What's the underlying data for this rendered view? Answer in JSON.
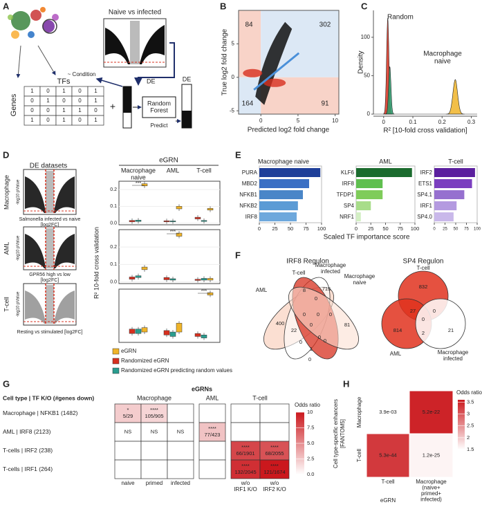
{
  "panel_labels": [
    "A",
    "B",
    "C",
    "D",
    "E",
    "F",
    "G",
    "H"
  ],
  "panel_a": {
    "volcano_title": "Naive vs infected",
    "condition": "~ Condition",
    "de_left": "DE",
    "tfs": "TFs",
    "genes": "Genes",
    "matrix": [
      [
        1,
        0,
        1,
        0,
        1
      ],
      [
        0,
        1,
        0,
        0,
        1
      ],
      [
        0,
        0,
        1,
        1,
        0
      ],
      [
        1,
        0,
        1,
        0,
        1
      ]
    ],
    "plus": "+",
    "random_forest": [
      "Random",
      "Forest"
    ],
    "predict": "Predict",
    "de_right": "DE"
  },
  "panel_b": {
    "xlabel": "Predicted log2 fold change",
    "ylabel": "True log2 fold change",
    "xlim": [
      -3,
      10.5
    ],
    "ylim": [
      -5.5,
      10
    ],
    "xticks": [
      0,
      5,
      10
    ],
    "yticks": [
      -5,
      0,
      5
    ],
    "quadrant_counts": {
      "top_left": 84,
      "top_right": 302,
      "bottom_left": 164,
      "bottom_right": 91
    },
    "colors": {
      "agree": "#dce8f5",
      "disagree": "#f8d3c8"
    }
  },
  "panel_c": {
    "ylabel": "Density",
    "xlabel": "R² [10-fold cross validation]",
    "xlim": [
      -0.035,
      0.32
    ],
    "ylim": [
      0,
      135
    ],
    "xticks": [
      0,
      0.1,
      0.2,
      0.3
    ],
    "yticks": [
      0,
      50,
      100
    ],
    "annotations": [
      "Random",
      [
        "Macrophage",
        "naive"
      ]
    ],
    "peaks": [
      {
        "color": "#d7301f",
        "center": 0.014,
        "height": 125,
        "sd": 0.004
      },
      {
        "color": "#2a9d6f",
        "center": 0.021,
        "height": 62,
        "sd": 0.004
      },
      {
        "color": "#f0b429",
        "center": 0.245,
        "height": 45,
        "sd": 0.008
      }
    ]
  },
  "panel_d": {
    "title": "DE datasets",
    "datasets": [
      {
        "name": "Macrophage",
        "xlabel": [
          "Salmonella infected vs naive",
          "[log2FC]"
        ],
        "ylabel": "-log10 pValue"
      },
      {
        "name": "AML",
        "xlabel": [
          "GPR56 high vs low",
          "[log2FC]"
        ],
        "ylabel": "-log10 pValue"
      },
      {
        "name": "T-cell",
        "xlabel": [
          "Resting vs stimulated [log2FC]"
        ],
        "ylabel": "-log10 pValue"
      }
    ],
    "header": "eGRN",
    "columns": [
      [
        "Macrophage",
        "naive"
      ],
      [
        "AML"
      ],
      [
        "T-cell"
      ]
    ],
    "ylabel": "R² 10-fold cross validation",
    "series": [
      {
        "name": "eGRN",
        "color": "#f0b429"
      },
      {
        "name": "Randomized eGRN",
        "color": "#d7301f"
      },
      {
        "name": "Randomized eGRN predicting random values",
        "color": "#2a9d8f"
      }
    ],
    "facets": [
      {
        "ylim": [
          -0.01,
          0.25
        ],
        "yticks": [
          {
            "value": 0,
            "label": "0.0"
          },
          0.1,
          0.2
        ],
        "significance": {
          "text": "***",
          "column": 0
        },
        "boxes": [
          [
            [
              0.222,
              0.235
            ],
            [
              0.085,
              0.1
            ],
            [
              0.078,
              0.088
            ]
          ],
          [
            [
              0.008,
              0.016
            ],
            [
              0.008,
              0.014
            ],
            [
              0.025,
              0.035
            ]
          ],
          [
            [
              0.01,
              0.018
            ],
            [
              0.008,
              0.013
            ],
            [
              0.01,
              0.016
            ]
          ]
        ]
      },
      {
        "ylim": [
          -0.01,
          0.3
        ],
        "yticks": [
          {
            "value": 0,
            "label": "0.0"
          },
          0.1,
          0.2
        ],
        "significance": {
          "text": "***",
          "column": 1
        },
        "boxes": [
          [
            [
              0.07,
              0.085
            ],
            [
              0.262,
              0.28
            ],
            [
              0.01,
              0.02
            ]
          ],
          [
            [
              0.015,
              0.028
            ],
            [
              0.012,
              0.025
            ],
            [
              0.008,
              0.015
            ]
          ],
          [
            [
              0.025,
              0.035
            ],
            [
              0.01,
              0.018
            ],
            [
              0.01,
              0.02
            ]
          ]
        ]
      },
      {
        "ylim": [
          -0.005,
          0.175
        ],
        "significance": {
          "text": "***",
          "column": 2
        },
        "boxes": [
          [
            [
              0.03,
              0.045
            ],
            [
              0.03,
              0.06
            ],
            [
              0.155,
              0.163
            ]
          ],
          [
            [
              0.025,
              0.04
            ],
            [
              0.02,
              0.035
            ],
            [
              0.015,
              0.025
            ]
          ],
          [
            [
              0.025,
              0.04
            ],
            [
              0.015,
              0.03
            ],
            [
              0.01,
              0.02
            ]
          ]
        ]
      }
    ]
  },
  "panel_e": {
    "xlabel": "Scaled TF importance score",
    "xlim": [
      0,
      100
    ],
    "xticks": [
      0,
      25,
      50,
      75,
      100
    ],
    "panels": [
      {
        "title": "Macrophage naive",
        "categories": [
          "PURA",
          "MBD2",
          "NFKB1",
          "NFKB2",
          "IRF8"
        ],
        "values": [
          98,
          80,
          70,
          62,
          60
        ],
        "colors": [
          "#1f3f99",
          "#3a6fc4",
          "#4a86c8",
          "#5b9bd5",
          "#6ea8dc"
        ]
      },
      {
        "title": "AML",
        "categories": [
          "KLF6",
          "IRF8",
          "TFDP1",
          "SP4",
          "NRF1"
        ],
        "values": [
          95,
          45,
          45,
          25,
          8
        ],
        "colors": [
          "#1b6b2e",
          "#5fbf4f",
          "#7fcc5a",
          "#a8dd8a",
          "#d3efc4"
        ]
      },
      {
        "title": "T-cell",
        "categories": [
          "IRF2",
          "ETS1",
          "SP4.1",
          "IRF1",
          "SP4.0"
        ],
        "values": [
          95,
          88,
          70,
          52,
          45
        ],
        "colors": [
          "#5b1f9e",
          "#7b3fbf",
          "#9670cf",
          "#b49ae0",
          "#c9b8ea"
        ]
      }
    ]
  },
  "panel_f": {
    "venns": [
      {
        "title": "IRF8 Regulon",
        "sets": [
          "AML",
          "T-cell",
          [
            "Macrophage",
            "infected"
          ],
          [
            "Macrophage",
            "naive"
          ]
        ],
        "counts": [
          400,
          8,
          715,
          81,
          22,
          0,
          0,
          0,
          0,
          0,
          0,
          0,
          0,
          1,
          0
        ]
      },
      {
        "title": "SP4 Regulon",
        "sets": [
          "T-cell",
          "AML",
          [
            "Macrophage",
            "infected"
          ]
        ],
        "counts": [
          832,
          814,
          21,
          27,
          0,
          0,
          2
        ]
      }
    ]
  },
  "panel_g": {
    "title": "eGRNs",
    "groups": [
      "Macrophage",
      "AML",
      "T-cell"
    ],
    "row_header": "Cell type | TF K/O (#genes down)",
    "rows": [
      "Macrophage | NFKB1 (1482)",
      "AML | IRF8 (2123)",
      "T-cells | IRF2 (238)",
      "T-cells | IRF1 (264)"
    ],
    "columns": [
      "naive",
      "primed",
      "infected",
      null,
      [
        "w/o",
        "IRF1 K/O"
      ],
      [
        "w/o",
        "IRF2 K/O"
      ]
    ],
    "cells": [
      [
        {
          "sig": "*",
          "text": "5/29",
          "odds": 2.2
        },
        {
          "sig": "****",
          "text": "105/905",
          "odds": 1.8
        },
        null,
        null,
        null,
        null
      ],
      [
        {
          "sig": "NS"
        },
        {
          "sig": "NS"
        },
        {
          "sig": "NS"
        },
        {
          "sig": "****",
          "text": "77/423",
          "odds": 2.6
        },
        null,
        null
      ],
      [
        null,
        null,
        null,
        null,
        {
          "sig": "****",
          "text": "66/1901",
          "odds": 8
        },
        {
          "sig": "****",
          "text": "68/2055",
          "odds": 7.5
        }
      ],
      [
        null,
        null,
        null,
        null,
        {
          "sig": "****",
          "text": "132/2045",
          "odds": 9
        },
        {
          "sig": "****",
          "text": "121/1674",
          "odds": 10
        }
      ]
    ],
    "legend": {
      "title": "Odds ratio",
      "lim": [
        0,
        10
      ],
      "ticks": [
        {
          "value": 0,
          "label": "0.0"
        },
        2.5,
        {
          "value": 5,
          "label": "5.0"
        },
        7.5,
        10
      ]
    }
  },
  "panel_h": {
    "ylabel": [
      "Cell type-specific enhancers",
      "[FANTOM5]"
    ],
    "rows": [
      "Macrophage",
      "T-cell"
    ],
    "columns": [
      "T-cell",
      [
        "Macrophage",
        "(naive+",
        "primed+",
        "infected)"
      ]
    ],
    "xlabel": "eGRN",
    "cells": [
      [
        {
          "text": "3.9e-03",
          "odds": 1.5
        },
        {
          "text": "5.2e-22",
          "odds": 3.5
        }
      ],
      [
        {
          "text": "5.3e-44",
          "odds": 3.3
        },
        {
          "text": "1.2e-25",
          "odds": 1.6
        }
      ]
    ],
    "legend": {
      "title": "Odds ratio",
      "lim": [
        1.5,
        3.6
      ],
      "ticks": [
        1.5,
        2,
        2.5,
        3,
        3.5
      ]
    }
  }
}
